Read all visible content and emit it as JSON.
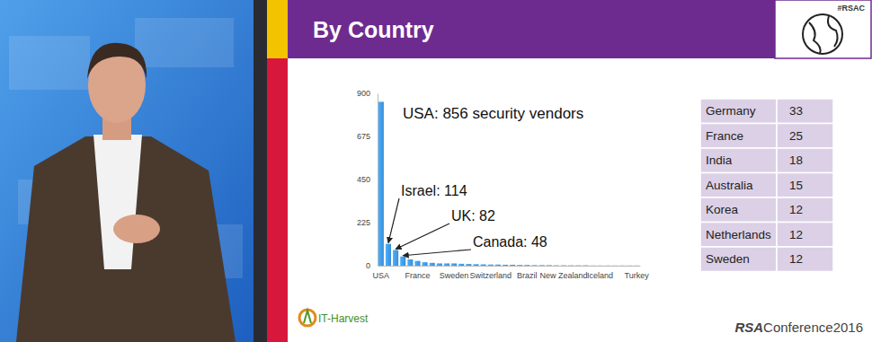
{
  "slide": {
    "title": "By Country",
    "hashtag": "#RSAC",
    "logo": "IT-Harvest",
    "footer": {
      "brand": "RSA",
      "text": "Conference2016"
    }
  },
  "chart_data": {
    "type": "bar",
    "categories": [
      "USA",
      null,
      null,
      null,
      null,
      "France",
      null,
      null,
      null,
      null,
      "Sweden",
      null,
      null,
      null,
      null,
      "Switzerland",
      null,
      null,
      null,
      null,
      "Brazil",
      null,
      null,
      null,
      null,
      "New Zealand",
      null,
      null,
      null,
      null,
      "Iceland",
      null,
      null,
      null,
      null,
      "Turkey"
    ],
    "values": [
      856,
      114,
      82,
      48,
      33,
      25,
      18,
      15,
      12,
      12,
      12,
      10,
      9,
      8,
      7,
      6,
      6,
      5,
      5,
      4,
      4,
      3,
      3,
      3,
      2,
      2,
      2,
      2,
      2,
      1,
      1,
      1,
      1,
      1,
      1,
      1
    ],
    "color": "#3b8ed8",
    "ylim": [
      0,
      900
    ],
    "yticks": [
      0,
      225,
      450,
      675,
      900
    ],
    "grid": false,
    "annotations": [
      "USA: 856 security vendors",
      "Israel: 114",
      "UK: 82",
      "Canada: 48"
    ]
  },
  "table": {
    "rows": [
      [
        "Germany",
        33
      ],
      [
        "France",
        25
      ],
      [
        "India",
        18
      ],
      [
        "Australia",
        15
      ],
      [
        "Korea",
        12
      ],
      [
        "Netherlands",
        12
      ],
      [
        "Sweden",
        12
      ]
    ]
  }
}
